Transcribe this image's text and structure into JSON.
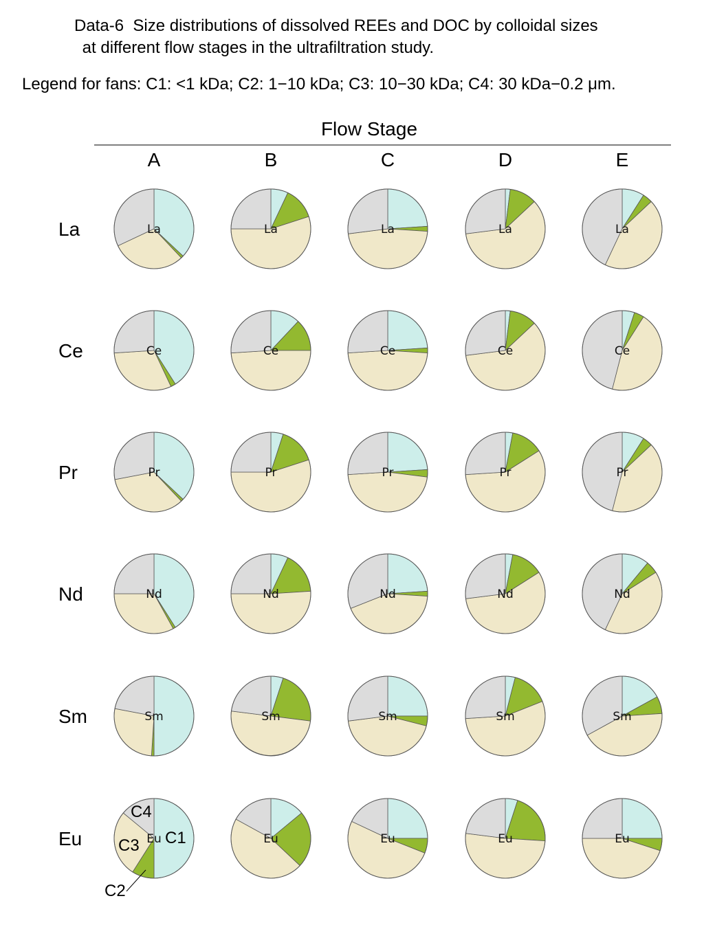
{
  "title_line1": "Data-6  Size distributions of dissolved REEs and DOC by colloidal sizes",
  "title_line2": " at different flow stages in the ultrafiltration study.",
  "legend_text": "Legend for fans: C1: <1 kDa;  C2: 1−10 kDa; C3: 10−30 kDa; C4: 30 kDa−0.2 μm.",
  "chart_data": {
    "type": "pie",
    "title": "Data-6  Size distributions of dissolved REEs and DOC by colloidal sizes at different flow stages in the ultrafiltration study.",
    "column_header": "Flow Stage",
    "stages": [
      "A",
      "B",
      "C",
      "D",
      "E"
    ],
    "elements": [
      "La",
      "Ce",
      "Pr",
      "Nd",
      "Sm",
      "Eu"
    ],
    "fractions": [
      "C1",
      "C2",
      "C3",
      "C4"
    ],
    "fraction_definitions": {
      "C1": "<1 kDa",
      "C2": "1−10 kDa",
      "C3": "10−30 kDa",
      "C4": "30 kDa−0.2 μm"
    },
    "colors": {
      "C1": "#cdeeea",
      "C2": "#93b930",
      "C3": "#f0e8c9",
      "C4": "#dcdcdc"
    },
    "values_percent": {
      "La": {
        "A": [
          37,
          1,
          30,
          32
        ],
        "B": [
          7,
          13,
          55,
          25
        ],
        "C": [
          24,
          2,
          47,
          27
        ],
        "D": [
          2,
          11,
          60,
          27
        ],
        "E": [
          9,
          4,
          44,
          43
        ]
      },
      "Ce": {
        "A": [
          41,
          2,
          31,
          26
        ],
        "B": [
          12,
          13,
          49,
          26
        ],
        "C": [
          24,
          2,
          48,
          26
        ],
        "D": [
          2,
          11,
          60,
          27
        ],
        "E": [
          5,
          4,
          45,
          46
        ]
      },
      "Pr": {
        "A": [
          37,
          1,
          34,
          28
        ],
        "B": [
          5,
          15,
          55,
          25
        ],
        "C": [
          24,
          3,
          47,
          26
        ],
        "D": [
          3,
          13,
          58,
          26
        ],
        "E": [
          9,
          4,
          41,
          46
        ]
      },
      "Nd": {
        "A": [
          41,
          1,
          33,
          25
        ],
        "B": [
          7,
          17,
          51,
          25
        ],
        "C": [
          24,
          2,
          43,
          31
        ],
        "D": [
          3,
          13,
          57,
          27
        ],
        "E": [
          11,
          5,
          41,
          43
        ]
      },
      "Sm": {
        "A": [
          50,
          1,
          27,
          22
        ],
        "B": [
          5,
          22,
          50,
          23
        ],
        "C": [
          25,
          4,
          44,
          27
        ],
        "D": [
          4,
          15,
          55,
          26
        ],
        "E": [
          17,
          7,
          43,
          33
        ]
      },
      "Eu": {
        "A": [
          50,
          9,
          27,
          14
        ],
        "B": [
          14,
          23,
          46,
          17
        ],
        "C": [
          25,
          6,
          51,
          18
        ],
        "D": [
          5,
          21,
          51,
          23
        ],
        "E": [
          25,
          5,
          45,
          25
        ]
      }
    },
    "callout_labels": {
      "C1": "C1",
      "C2": "C2",
      "C3": "C3",
      "C4": "C4"
    }
  }
}
